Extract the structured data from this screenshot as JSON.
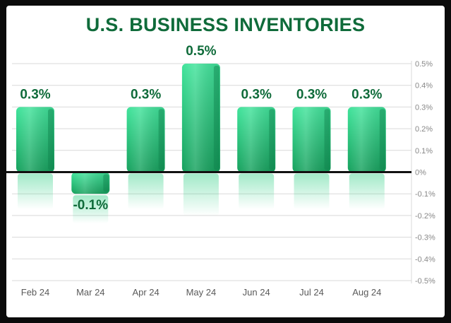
{
  "colors": {
    "title": "#0f6b3a",
    "bar_top": "#3fe39a",
    "bar_bottom": "#18a862",
    "bar_side": "#0e8a4f",
    "grid": "#d9d9d9",
    "zero_line": "#111111",
    "data_label": "#0f6b3a",
    "tick_label": "#888888"
  },
  "chart_data": {
    "type": "bar",
    "title": "U.S. BUSINESS INVENTORIES",
    "xlabel": "",
    "ylabel": "",
    "categories": [
      "Feb 24",
      "Mar 24",
      "Apr 24",
      "May 24",
      "Jun 24",
      "Jul 24",
      "Aug 24"
    ],
    "values": [
      0.3,
      -0.1,
      0.3,
      0.5,
      0.3,
      0.3,
      0.3
    ],
    "data_labels": [
      "0.3%",
      "-0.1%",
      "0.3%",
      "0.5%",
      "0.3%",
      "0.3%",
      "0.3%"
    ],
    "ylim": [
      -0.5,
      0.5
    ],
    "y_ticks": [
      0.5,
      0.4,
      0.3,
      0.2,
      0.1,
      0,
      -0.1,
      -0.2,
      -0.3,
      -0.4,
      -0.5
    ],
    "y_tick_labels": [
      "0.5%",
      "0.4%",
      "0.3%",
      "0.2%",
      "0.1%",
      "0%",
      "-0.1%",
      "-0.2%",
      "-0.3%",
      "-0.4%",
      "-0.5%"
    ],
    "y_axis_position": "right",
    "grid": true,
    "legend": "none"
  }
}
